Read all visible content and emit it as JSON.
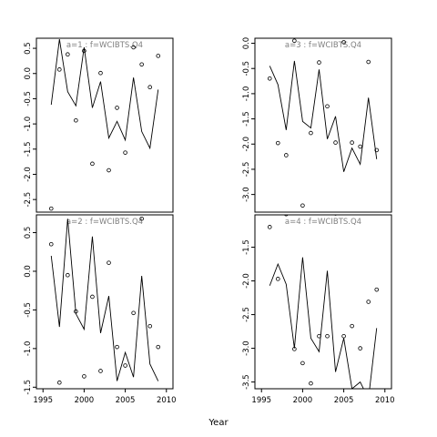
{
  "chart_data": {
    "type": "line",
    "xlabel": "Year",
    "panels": [
      {
        "id": "a1",
        "title": "a=1  :  f=WCIBTS.Q4",
        "xlim": [
          1994.2,
          2010.8
        ],
        "ylim": [
          -2.75,
          0.7
        ],
        "yticks": [
          0.5,
          0.0,
          -0.5,
          -1.0,
          -1.5,
          -2.0,
          -2.5
        ],
        "ytick_labels": [
          "0.5",
          "0.0",
          "-0.5",
          "-1.0",
          "-1.5",
          "-2.0",
          "-2.5"
        ],
        "x_axis_shown": false,
        "line": {
          "x": [
            1996,
            1997,
            1998,
            1999,
            2000,
            2001,
            2002,
            2003,
            2004,
            2005,
            2006,
            2007,
            2008,
            2009
          ],
          "y": [
            -0.62,
            0.68,
            -0.36,
            -0.64,
            0.52,
            -0.68,
            -0.16,
            -1.28,
            -0.95,
            -1.32,
            -0.08,
            -1.15,
            -1.48,
            -0.32
          ]
        },
        "points": {
          "x": [
            1996,
            1997,
            1998,
            1999,
            2000,
            2001,
            2002,
            2003,
            2004,
            2005,
            2006,
            2007,
            2008,
            2009
          ],
          "y": [
            -2.68,
            0.08,
            0.38,
            -0.93,
            0.45,
            -1.79,
            0.01,
            -1.92,
            -0.68,
            -1.57,
            0.52,
            0.18,
            -0.27,
            0.35
          ]
        }
      },
      {
        "id": "a3",
        "title": "a=3  :  f=WCIBTS.Q4",
        "xlim": [
          1994.2,
          2010.8
        ],
        "ylim": [
          -3.35,
          0.1
        ],
        "yticks": [
          0.0,
          -0.5,
          -1.0,
          -1.5,
          -2.0,
          -2.5,
          -3.0
        ],
        "ytick_labels": [
          "0.0",
          "-0.5",
          "-1.0",
          "-1.5",
          "-2.0",
          "-2.5",
          "-3.0"
        ],
        "x_axis_shown": false,
        "line": {
          "x": [
            1996,
            1997,
            1998,
            1999,
            2000,
            2001,
            2002,
            2003,
            2004,
            2005,
            2006,
            2007,
            2008,
            2009
          ],
          "y": [
            -0.45,
            -0.82,
            -1.72,
            -0.35,
            -1.55,
            -1.68,
            -0.52,
            -1.9,
            -1.45,
            -2.55,
            -2.08,
            -2.4,
            -1.08,
            -2.3
          ]
        },
        "points": {
          "x": [
            1996,
            1997,
            1998,
            1999,
            2000,
            2001,
            2002,
            2003,
            2004,
            2005,
            2006,
            2007,
            2008,
            2009
          ],
          "y": [
            -0.7,
            -1.98,
            -2.22,
            0.05,
            -3.22,
            -1.78,
            -0.38,
            -1.25,
            -1.97,
            0.02,
            -1.97,
            -2.05,
            -0.37,
            -2.12
          ]
        }
      },
      {
        "id": "a2",
        "title": "a=2  :  f=WCIBTS.Q4",
        "xlim": [
          1994.2,
          2010.8
        ],
        "ylim": [
          -1.52,
          0.73
        ],
        "yticks": [
          0.5,
          0.0,
          -0.5,
          -1.0,
          -1.5
        ],
        "ytick_labels": [
          "0.5",
          "0.0",
          "-0.5",
          "-1.0",
          "-1.5"
        ],
        "x_axis_shown": true,
        "xticks": [
          1995,
          2000,
          2005,
          2010
        ],
        "xtick_labels": [
          "1995",
          "2000",
          "2005",
          "2010"
        ],
        "line": {
          "x": [
            1996,
            1997,
            1998,
            1999,
            2000,
            2001,
            2002,
            2003,
            2004,
            2005,
            2006,
            2007,
            2008,
            2009
          ],
          "y": [
            0.2,
            -0.72,
            0.68,
            -0.55,
            -0.75,
            0.45,
            -0.8,
            -0.32,
            -1.42,
            -1.05,
            -1.37,
            -0.06,
            -1.2,
            -1.42
          ]
        },
        "points": {
          "x": [
            1996,
            1997,
            1998,
            1999,
            2000,
            2001,
            2002,
            2003,
            2004,
            2005,
            2006,
            2007,
            2008,
            2009
          ],
          "y": [
            0.35,
            -1.44,
            -0.05,
            -0.52,
            -1.36,
            -0.33,
            -1.29,
            0.11,
            -0.98,
            -1.22,
            -0.54,
            0.68,
            -0.71,
            -0.98
          ]
        }
      },
      {
        "id": "a4",
        "title": "a=4  :  f=WCIBTS.Q4",
        "xlim": [
          1994.2,
          2010.8
        ],
        "ylim": [
          -3.6,
          -1.02
        ],
        "yticks": [
          -1.5,
          -2.0,
          -2.5,
          -3.0,
          -3.5
        ],
        "ytick_labels": [
          "-1.5",
          "-2.0",
          "-2.5",
          "-3.0",
          "-3.5"
        ],
        "x_axis_shown": true,
        "xticks": [
          1995,
          2000,
          2005,
          2010
        ],
        "xtick_labels": [
          "1995",
          "2000",
          "2005",
          "2010"
        ],
        "line": {
          "x": [
            1996,
            1997,
            1998,
            1999,
            2000,
            2001,
            2002,
            2003,
            2004,
            2005,
            2006,
            2007,
            2008,
            2009
          ],
          "y": [
            -2.07,
            -1.75,
            -2.05,
            -3.0,
            -1.65,
            -2.85,
            -3.05,
            -1.85,
            -3.35,
            -2.85,
            -3.6,
            -3.5,
            -3.75,
            -2.7
          ]
        },
        "points": {
          "x": [
            1996,
            1997,
            1998,
            1999,
            2000,
            2001,
            2002,
            2003,
            2004,
            2005,
            2006,
            2007,
            2008,
            2009
          ],
          "y": [
            -1.2,
            -1.97,
            -1.01,
            -3.01,
            -3.22,
            -3.52,
            -2.82,
            -2.82,
            -1.0,
            -2.82,
            -2.67,
            -3.0,
            -2.31,
            -2.13
          ]
        }
      }
    ]
  }
}
